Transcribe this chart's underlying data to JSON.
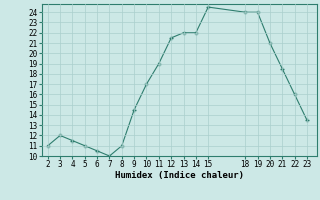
{
  "x": [
    2,
    3,
    4,
    5,
    6,
    7,
    8,
    9,
    10,
    11,
    12,
    13,
    14,
    15,
    18,
    19,
    20,
    21,
    22,
    23
  ],
  "y": [
    11,
    12,
    11.5,
    11,
    10.5,
    10,
    11,
    14.5,
    17,
    19,
    21.5,
    22,
    22,
    24.5,
    24,
    24,
    21,
    18.5,
    16,
    13.5
  ],
  "line_color": "#2e7d6e",
  "marker_color": "#2e7d6e",
  "bg_color": "#cce8e6",
  "grid_color": "#aacfcd",
  "xlabel": "Humidex (Indice chaleur)",
  "ylim": [
    10,
    24.8
  ],
  "xlim": [
    1.5,
    23.8
  ],
  "yticks": [
    10,
    11,
    12,
    13,
    14,
    15,
    16,
    17,
    18,
    19,
    20,
    21,
    22,
    23,
    24
  ],
  "xticks": [
    2,
    3,
    4,
    5,
    6,
    7,
    8,
    9,
    10,
    11,
    12,
    13,
    14,
    15,
    18,
    19,
    20,
    21,
    22,
    23
  ],
  "label_fontsize": 6.5,
  "tick_fontsize": 5.5
}
